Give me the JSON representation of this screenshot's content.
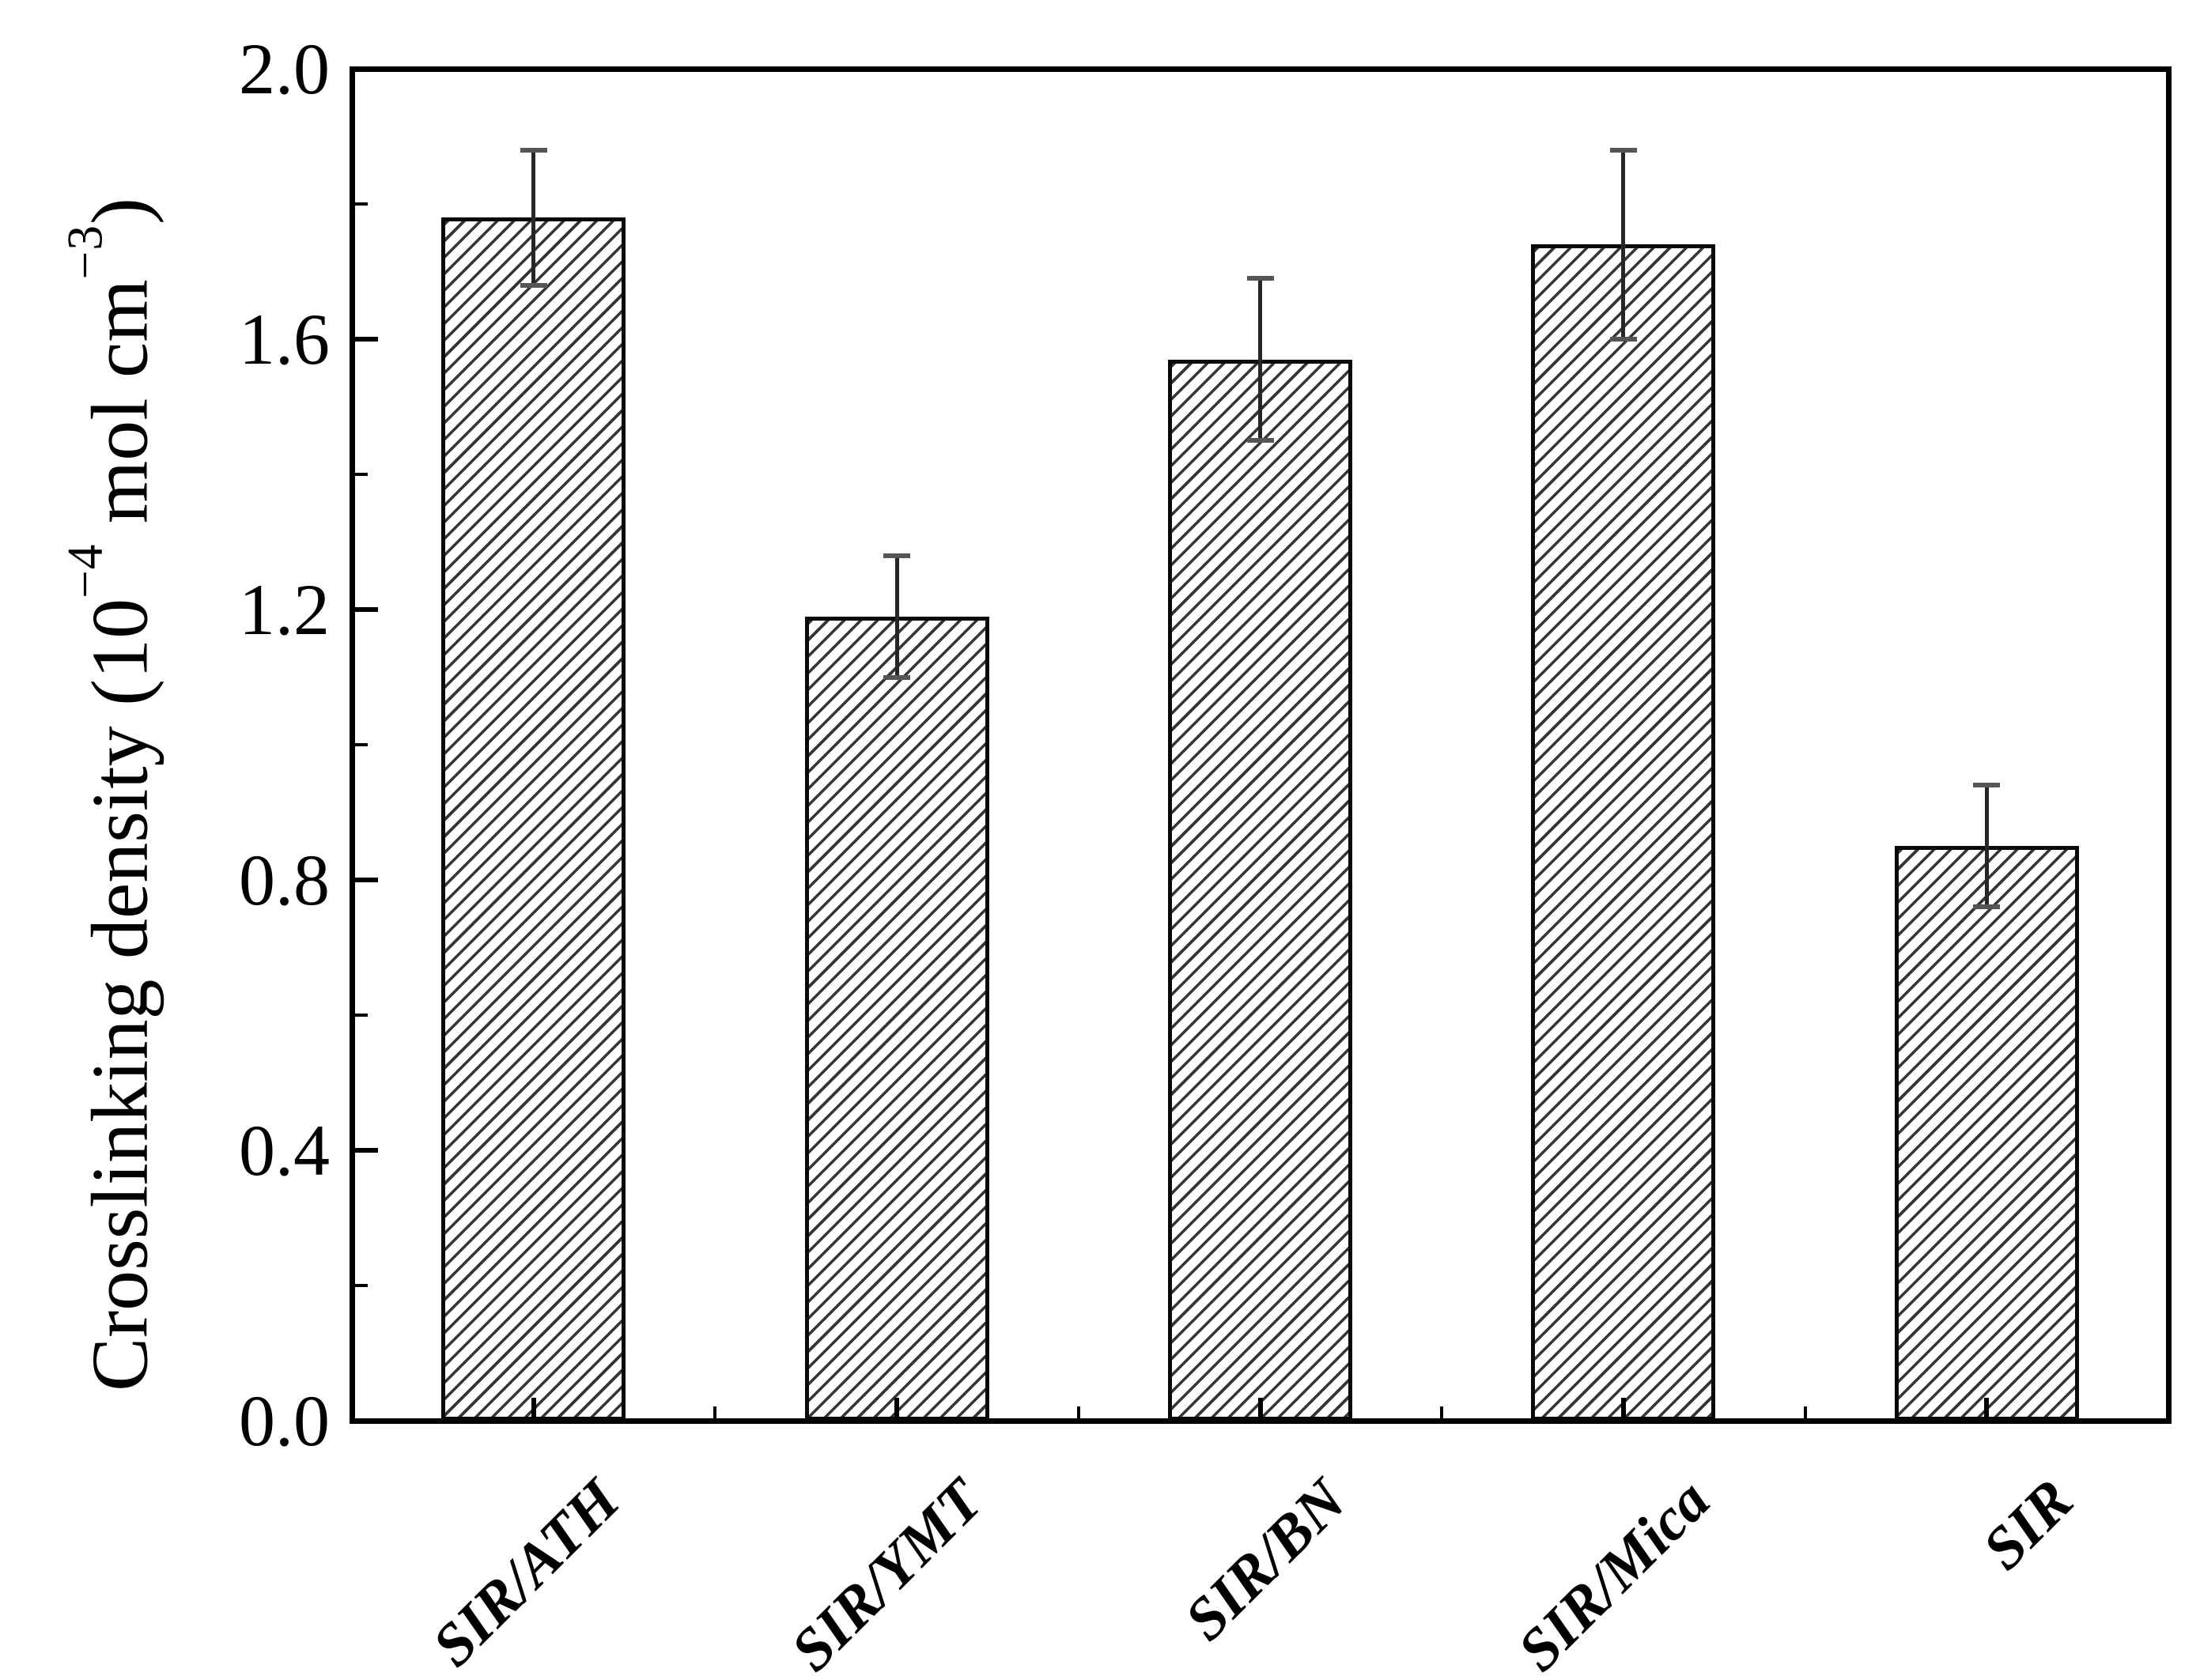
{
  "chart_data": {
    "type": "bar",
    "title": "",
    "categories": [
      "SIR/ATH",
      "SIR/YMT",
      "SIR/BN",
      "SIR/Mica",
      "SIR"
    ],
    "series": [
      {
        "name": "Crosslinking density",
        "values": [
          1.78,
          1.19,
          1.57,
          1.74,
          0.85
        ],
        "errors": [
          0.1,
          0.09,
          0.12,
          0.14,
          0.09
        ]
      }
    ],
    "xlabel": "",
    "ylabel": "Crosslinking density (10−4 mol cm−3)",
    "ylabel_segments": [
      {
        "text": "Crosslinking density (10",
        "sup": false
      },
      {
        "text": "−4",
        "sup": true
      },
      {
        "text": " mol cm",
        "sup": false
      },
      {
        "text": "−3",
        "sup": true
      },
      {
        "text": ")",
        "sup": false
      }
    ],
    "ylim": [
      0.0,
      2.0
    ],
    "y_major_tick_step": 0.4,
    "y_minor_tick_step": 0.2,
    "y_tick_labels": [
      "0.0",
      "0.4",
      "0.8",
      "1.2",
      "1.6",
      "2.0"
    ],
    "grid": false,
    "legend": "none",
    "bar_style": {
      "fill": "diagonal-hatch",
      "hatch_direction": "forward-slash",
      "outline_color": "#000000",
      "hatch_color": "#2b2b2b",
      "bar_background": "#ffffff"
    },
    "error_bar_stem_color": "#262626",
    "error_bar_cap_color": "#555555",
    "axis_color": "#000000",
    "background_color": "#ffffff"
  }
}
